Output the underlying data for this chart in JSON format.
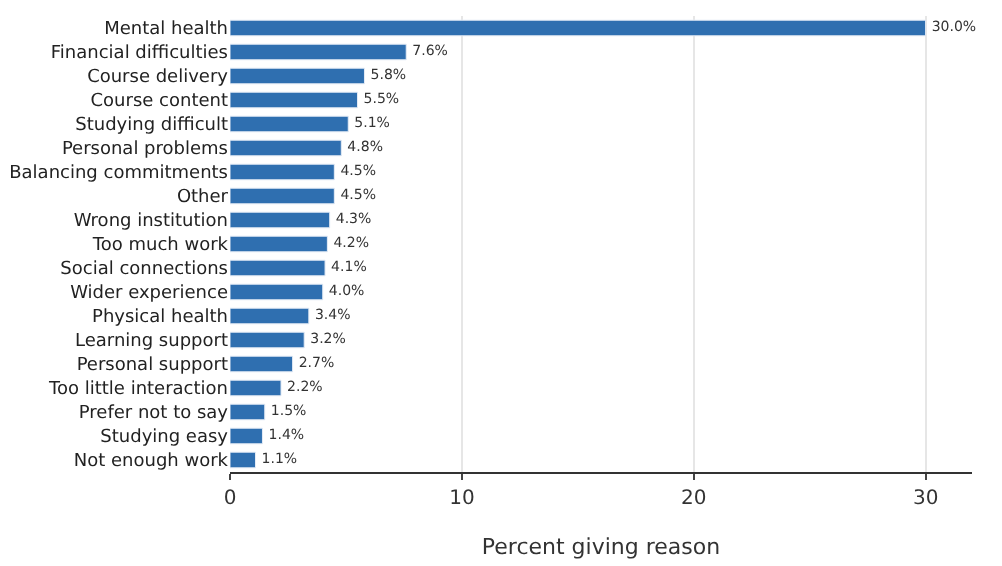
{
  "chart_data": {
    "type": "bar",
    "orientation": "horizontal",
    "xlabel": "Percent giving reason",
    "categories": [
      "Mental health",
      "Financial difficulties",
      "Course delivery",
      "Course content",
      "Studying difficult",
      "Personal problems",
      "Balancing commitments",
      "Other",
      "Wrong institution",
      "Too much work",
      "Social connections",
      "Wider experience",
      "Physical health",
      "Learning support",
      "Personal support",
      "Too little interaction",
      "Prefer not to say",
      "Studying easy",
      "Not enough work"
    ],
    "values": [
      30.0,
      7.6,
      5.8,
      5.5,
      5.1,
      4.8,
      4.5,
      4.5,
      4.3,
      4.2,
      4.1,
      4.0,
      3.4,
      3.2,
      2.7,
      2.2,
      1.5,
      1.4,
      1.1
    ],
    "value_labels": [
      "30.0%",
      "7.6%",
      "5.8%",
      "5.5%",
      "5.1%",
      "4.8%",
      "4.5%",
      "4.5%",
      "4.3%",
      "4.2%",
      "4.1%",
      "4.0%",
      "3.4%",
      "3.2%",
      "2.7%",
      "2.2%",
      "1.5%",
      "1.4%",
      "1.1%"
    ],
    "color": "#2f6fb0",
    "xlim": [
      0,
      32
    ],
    "xticks": [
      0,
      10,
      20,
      30
    ],
    "grid": "x",
    "legend": false
  }
}
